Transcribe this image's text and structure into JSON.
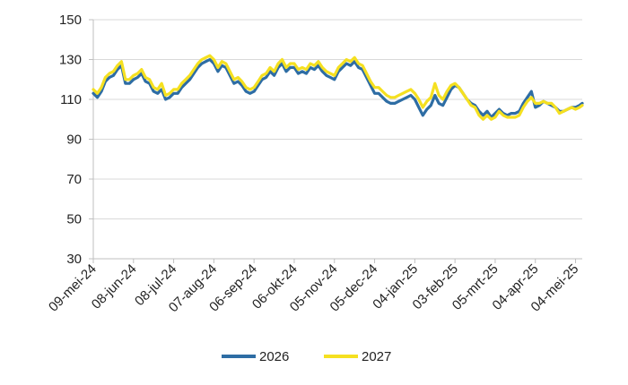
{
  "chart_data": {
    "type": "line",
    "title": "",
    "xlabel": "",
    "ylabel": "",
    "ylim": [
      30,
      150
    ],
    "yticks": [
      30,
      50,
      70,
      90,
      110,
      130,
      150
    ],
    "xlim": [
      "2024-05-09",
      "2025-05-09"
    ],
    "xticks": [
      {
        "date": "2024-05-09",
        "label": "09-mei-24"
      },
      {
        "date": "2024-06-08",
        "label": "08-jun-24"
      },
      {
        "date": "2024-07-08",
        "label": "08-jul-24"
      },
      {
        "date": "2024-08-07",
        "label": "07-aug-24"
      },
      {
        "date": "2024-09-06",
        "label": "06-sep-24"
      },
      {
        "date": "2024-10-06",
        "label": "06-okt-24"
      },
      {
        "date": "2024-11-05",
        "label": "05-nov-24"
      },
      {
        "date": "2024-12-05",
        "label": "05-dec-24"
      },
      {
        "date": "2025-01-04",
        "label": "04-jan-25"
      },
      {
        "date": "2025-02-03",
        "label": "03-feb-25"
      },
      {
        "date": "2025-03-05",
        "label": "05-mrt-25"
      },
      {
        "date": "2025-04-04",
        "label": "04-apr-25"
      },
      {
        "date": "2025-05-04",
        "label": "04-mei-25"
      }
    ],
    "grid": {
      "horizontal": true,
      "vertical": false
    },
    "legend": "bottom-center",
    "series": [
      {
        "name": "2026",
        "color": "#2E6DA4",
        "points": [
          [
            "2024-05-09",
            113
          ],
          [
            "2024-05-12",
            111
          ],
          [
            "2024-05-15",
            114
          ],
          [
            "2024-05-18",
            119
          ],
          [
            "2024-05-21",
            121
          ],
          [
            "2024-05-24",
            122
          ],
          [
            "2024-05-27",
            125
          ],
          [
            "2024-05-30",
            127
          ],
          [
            "2024-06-02",
            118
          ],
          [
            "2024-06-05",
            118
          ],
          [
            "2024-06-08",
            120
          ],
          [
            "2024-06-11",
            121
          ],
          [
            "2024-06-14",
            123
          ],
          [
            "2024-06-17",
            119
          ],
          [
            "2024-06-20",
            118
          ],
          [
            "2024-06-23",
            114
          ],
          [
            "2024-06-26",
            113
          ],
          [
            "2024-06-29",
            115
          ],
          [
            "2024-07-02",
            110
          ],
          [
            "2024-07-05",
            111
          ],
          [
            "2024-07-08",
            113
          ],
          [
            "2024-07-11",
            113
          ],
          [
            "2024-07-14",
            116
          ],
          [
            "2024-07-17",
            118
          ],
          [
            "2024-07-20",
            120
          ],
          [
            "2024-07-23",
            123
          ],
          [
            "2024-07-26",
            126
          ],
          [
            "2024-07-29",
            128
          ],
          [
            "2024-08-01",
            129
          ],
          [
            "2024-08-04",
            130
          ],
          [
            "2024-08-07",
            128
          ],
          [
            "2024-08-10",
            124
          ],
          [
            "2024-08-13",
            127
          ],
          [
            "2024-08-16",
            126
          ],
          [
            "2024-08-19",
            122
          ],
          [
            "2024-08-22",
            118
          ],
          [
            "2024-08-25",
            119
          ],
          [
            "2024-08-28",
            117
          ],
          [
            "2024-08-31",
            114
          ],
          [
            "2024-09-03",
            113
          ],
          [
            "2024-09-06",
            114
          ],
          [
            "2024-09-09",
            117
          ],
          [
            "2024-09-12",
            120
          ],
          [
            "2024-09-15",
            121
          ],
          [
            "2024-09-18",
            124
          ],
          [
            "2024-09-21",
            122
          ],
          [
            "2024-09-24",
            126
          ],
          [
            "2024-09-27",
            128
          ],
          [
            "2024-09-30",
            124
          ],
          [
            "2024-10-03",
            126
          ],
          [
            "2024-10-06",
            126
          ],
          [
            "2024-10-09",
            123
          ],
          [
            "2024-10-12",
            124
          ],
          [
            "2024-10-15",
            123
          ],
          [
            "2024-10-18",
            126
          ],
          [
            "2024-10-21",
            125
          ],
          [
            "2024-10-24",
            127
          ],
          [
            "2024-10-27",
            124
          ],
          [
            "2024-10-30",
            122
          ],
          [
            "2024-11-02",
            121
          ],
          [
            "2024-11-05",
            120
          ],
          [
            "2024-11-08",
            124
          ],
          [
            "2024-11-11",
            126
          ],
          [
            "2024-11-14",
            128
          ],
          [
            "2024-11-17",
            127
          ],
          [
            "2024-11-20",
            129
          ],
          [
            "2024-11-23",
            126
          ],
          [
            "2024-11-26",
            125
          ],
          [
            "2024-11-29",
            121
          ],
          [
            "2024-12-02",
            117
          ],
          [
            "2024-12-05",
            113
          ],
          [
            "2024-12-08",
            113
          ],
          [
            "2024-12-11",
            111
          ],
          [
            "2024-12-14",
            109
          ],
          [
            "2024-12-17",
            108
          ],
          [
            "2024-12-20",
            108
          ],
          [
            "2024-12-23",
            109
          ],
          [
            "2024-12-26",
            110
          ],
          [
            "2024-12-29",
            111
          ],
          [
            "2025-01-01",
            112
          ],
          [
            "2025-01-04",
            110
          ],
          [
            "2025-01-07",
            106
          ],
          [
            "2025-01-10",
            102
          ],
          [
            "2025-01-13",
            105
          ],
          [
            "2025-01-16",
            107
          ],
          [
            "2025-01-19",
            112
          ],
          [
            "2025-01-22",
            108
          ],
          [
            "2025-01-25",
            107
          ],
          [
            "2025-01-28",
            111
          ],
          [
            "2025-01-31",
            115
          ],
          [
            "2025-02-03",
            117
          ],
          [
            "2025-02-06",
            116
          ],
          [
            "2025-02-09",
            113
          ],
          [
            "2025-02-12",
            110
          ],
          [
            "2025-02-15",
            108
          ],
          [
            "2025-02-18",
            107
          ],
          [
            "2025-02-21",
            104
          ],
          [
            "2025-02-24",
            102
          ],
          [
            "2025-02-27",
            104
          ],
          [
            "2025-03-02",
            101
          ],
          [
            "2025-03-05",
            103
          ],
          [
            "2025-03-08",
            105
          ],
          [
            "2025-03-11",
            103
          ],
          [
            "2025-03-14",
            102
          ],
          [
            "2025-03-17",
            103
          ],
          [
            "2025-03-20",
            103
          ],
          [
            "2025-03-23",
            104
          ],
          [
            "2025-03-26",
            108
          ],
          [
            "2025-03-29",
            111
          ],
          [
            "2025-04-01",
            114
          ],
          [
            "2025-04-04",
            106
          ],
          [
            "2025-04-07",
            107
          ],
          [
            "2025-04-10",
            109
          ],
          [
            "2025-04-13",
            108
          ],
          [
            "2025-04-16",
            107
          ],
          [
            "2025-04-19",
            106
          ],
          [
            "2025-04-22",
            104
          ],
          [
            "2025-04-25",
            104
          ],
          [
            "2025-04-28",
            105
          ],
          [
            "2025-05-01",
            106
          ],
          [
            "2025-05-04",
            106
          ],
          [
            "2025-05-07",
            107
          ],
          [
            "2025-05-09",
            108
          ]
        ]
      },
      {
        "name": "2027",
        "color": "#F5E020",
        "points": [
          [
            "2024-05-09",
            115
          ],
          [
            "2024-05-12",
            113
          ],
          [
            "2024-05-15",
            116
          ],
          [
            "2024-05-18",
            121
          ],
          [
            "2024-05-21",
            123
          ],
          [
            "2024-05-24",
            124
          ],
          [
            "2024-05-27",
            127
          ],
          [
            "2024-05-30",
            129
          ],
          [
            "2024-06-02",
            120
          ],
          [
            "2024-06-05",
            120
          ],
          [
            "2024-06-08",
            122
          ],
          [
            "2024-06-11",
            123
          ],
          [
            "2024-06-14",
            125
          ],
          [
            "2024-06-17",
            121
          ],
          [
            "2024-06-20",
            120
          ],
          [
            "2024-06-23",
            116
          ],
          [
            "2024-06-26",
            115
          ],
          [
            "2024-06-29",
            118
          ],
          [
            "2024-07-02",
            112
          ],
          [
            "2024-07-05",
            113
          ],
          [
            "2024-07-08",
            115
          ],
          [
            "2024-07-11",
            115
          ],
          [
            "2024-07-14",
            118
          ],
          [
            "2024-07-17",
            120
          ],
          [
            "2024-07-20",
            122
          ],
          [
            "2024-07-23",
            125
          ],
          [
            "2024-07-26",
            128
          ],
          [
            "2024-07-29",
            130
          ],
          [
            "2024-08-01",
            131
          ],
          [
            "2024-08-04",
            132
          ],
          [
            "2024-08-07",
            130
          ],
          [
            "2024-08-10",
            126
          ],
          [
            "2024-08-13",
            129
          ],
          [
            "2024-08-16",
            128
          ],
          [
            "2024-08-19",
            124
          ],
          [
            "2024-08-22",
            120
          ],
          [
            "2024-08-25",
            121
          ],
          [
            "2024-08-28",
            119
          ],
          [
            "2024-08-31",
            116
          ],
          [
            "2024-09-03",
            115
          ],
          [
            "2024-09-06",
            116
          ],
          [
            "2024-09-09",
            119
          ],
          [
            "2024-09-12",
            122
          ],
          [
            "2024-09-15",
            123
          ],
          [
            "2024-09-18",
            126
          ],
          [
            "2024-09-21",
            124
          ],
          [
            "2024-09-24",
            128
          ],
          [
            "2024-09-27",
            130
          ],
          [
            "2024-09-30",
            126
          ],
          [
            "2024-10-03",
            128
          ],
          [
            "2024-10-06",
            128
          ],
          [
            "2024-10-09",
            125
          ],
          [
            "2024-10-12",
            126
          ],
          [
            "2024-10-15",
            125
          ],
          [
            "2024-10-18",
            128
          ],
          [
            "2024-10-21",
            127
          ],
          [
            "2024-10-24",
            129
          ],
          [
            "2024-10-27",
            126
          ],
          [
            "2024-10-30",
            124
          ],
          [
            "2024-11-02",
            123
          ],
          [
            "2024-11-05",
            122
          ],
          [
            "2024-11-08",
            126
          ],
          [
            "2024-11-11",
            128
          ],
          [
            "2024-11-14",
            130
          ],
          [
            "2024-11-17",
            129
          ],
          [
            "2024-11-20",
            131
          ],
          [
            "2024-11-23",
            128
          ],
          [
            "2024-11-26",
            127
          ],
          [
            "2024-11-29",
            123
          ],
          [
            "2024-12-02",
            119
          ],
          [
            "2024-12-05",
            116
          ],
          [
            "2024-12-08",
            116
          ],
          [
            "2024-12-11",
            114
          ],
          [
            "2024-12-14",
            112
          ],
          [
            "2024-12-17",
            111
          ],
          [
            "2024-12-20",
            111
          ],
          [
            "2024-12-23",
            112
          ],
          [
            "2024-12-26",
            113
          ],
          [
            "2024-12-29",
            114
          ],
          [
            "2025-01-01",
            115
          ],
          [
            "2025-01-04",
            113
          ],
          [
            "2025-01-07",
            110
          ],
          [
            "2025-01-10",
            106
          ],
          [
            "2025-01-13",
            109
          ],
          [
            "2025-01-16",
            111
          ],
          [
            "2025-01-19",
            118
          ],
          [
            "2025-01-22",
            112
          ],
          [
            "2025-01-25",
            110
          ],
          [
            "2025-01-28",
            114
          ],
          [
            "2025-01-31",
            117
          ],
          [
            "2025-02-03",
            118
          ],
          [
            "2025-02-06",
            116
          ],
          [
            "2025-02-09",
            113
          ],
          [
            "2025-02-12",
            110
          ],
          [
            "2025-02-15",
            107
          ],
          [
            "2025-02-18",
            106
          ],
          [
            "2025-02-21",
            102
          ],
          [
            "2025-02-24",
            100
          ],
          [
            "2025-02-27",
            102
          ],
          [
            "2025-03-02",
            100
          ],
          [
            "2025-03-05",
            101
          ],
          [
            "2025-03-08",
            104
          ],
          [
            "2025-03-11",
            102
          ],
          [
            "2025-03-14",
            101
          ],
          [
            "2025-03-17",
            101
          ],
          [
            "2025-03-20",
            101
          ],
          [
            "2025-03-23",
            102
          ],
          [
            "2025-03-26",
            106
          ],
          [
            "2025-03-29",
            109
          ],
          [
            "2025-04-01",
            111
          ],
          [
            "2025-04-04",
            108
          ],
          [
            "2025-04-07",
            108
          ],
          [
            "2025-04-10",
            109
          ],
          [
            "2025-04-13",
            108
          ],
          [
            "2025-04-16",
            108
          ],
          [
            "2025-04-19",
            106
          ],
          [
            "2025-04-22",
            103
          ],
          [
            "2025-04-25",
            104
          ],
          [
            "2025-04-28",
            105
          ],
          [
            "2025-05-01",
            106
          ],
          [
            "2025-05-04",
            105
          ],
          [
            "2025-05-07",
            106
          ],
          [
            "2025-05-09",
            107
          ]
        ]
      }
    ]
  }
}
